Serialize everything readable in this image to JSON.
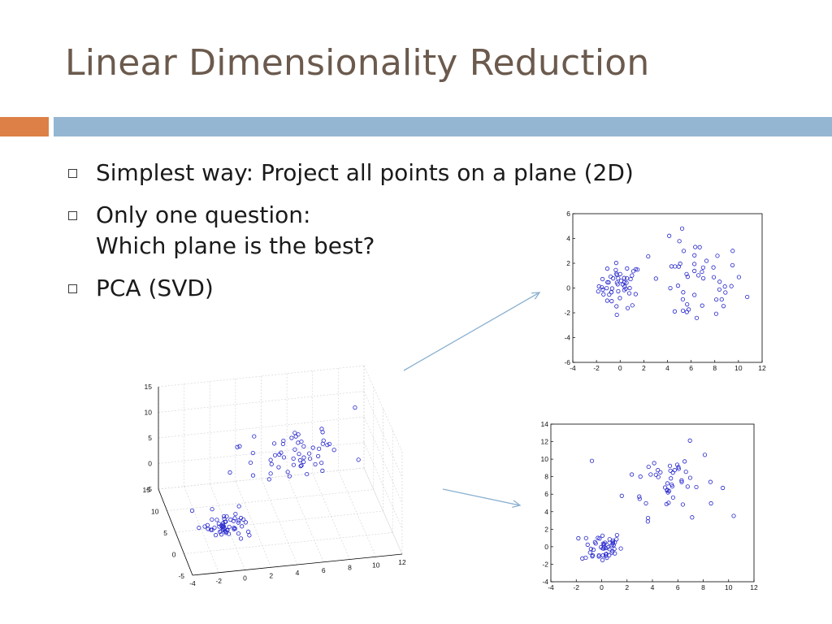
{
  "slide": {
    "title": "Linear Dimensionality Reduction",
    "bullets": [
      {
        "lines": [
          "Simplest way: Project all points on a plane (2D)"
        ]
      },
      {
        "lines": [
          "Only one question:",
          "Which plane is the best?"
        ]
      },
      {
        "lines": [
          "PCA (SVD)"
        ]
      }
    ]
  },
  "colors": {
    "title": "#6b5a4d",
    "orange_bar": "#dd8047",
    "blue_bar": "#94b6d2",
    "point": "#2222cc",
    "arrow": "#8ab0d0"
  },
  "chart_data": [
    {
      "type": "scatter",
      "name_hint": "3d-scatter",
      "x_ticks": [
        "-4",
        "-2",
        "0",
        "2",
        "4",
        "6",
        "8",
        "10",
        "12"
      ],
      "y_ticks": [
        "15",
        "10",
        "5",
        "0",
        "-5"
      ],
      "z_ticks": [
        "15",
        "10",
        "5",
        "0",
        "-5"
      ],
      "clusters": [
        {
          "count": 50,
          "x_mean": 0,
          "y_mean": 0,
          "z_mean": 0
        },
        {
          "count": 50,
          "x_mean": 6,
          "y_mean": 8,
          "z_mean": 2
        }
      ]
    },
    {
      "type": "scatter",
      "name_hint": "top-right-projection",
      "xlim": [
        -4,
        12
      ],
      "ylim": [
        -6,
        6
      ],
      "x_ticks": [
        "-4",
        "-2",
        "0",
        "2",
        "4",
        "6",
        "8",
        "10",
        "12"
      ],
      "y_ticks": [
        "6",
        "4",
        "2",
        "0",
        "-2",
        "-4",
        "-6"
      ],
      "clusters": [
        {
          "count": 50,
          "x_mean": 0,
          "y_mean": 0.2,
          "x_sd": 0.9,
          "y_sd": 0.9
        },
        {
          "count": 50,
          "x_mean": 6.5,
          "y_mean": 0.3,
          "x_sd": 2.0,
          "y_sd": 1.8
        }
      ]
    },
    {
      "type": "scatter",
      "name_hint": "bottom-right-projection",
      "xlim": [
        -4,
        12
      ],
      "ylim": [
        -4,
        14
      ],
      "x_ticks": [
        "-4",
        "-2",
        "0",
        "2",
        "4",
        "6",
        "8",
        "10",
        "12"
      ],
      "y_ticks": [
        "14",
        "12",
        "10",
        "8",
        "6",
        "4",
        "2",
        "0",
        "-2",
        "-4"
      ],
      "clusters": [
        {
          "count": 50,
          "x_mean": 0,
          "y_mean": 0,
          "x_sd": 0.8,
          "y_sd": 0.9
        },
        {
          "count": 50,
          "x_mean": 5.5,
          "y_mean": 7.5,
          "x_sd": 1.8,
          "y_sd": 2.0
        }
      ]
    }
  ]
}
